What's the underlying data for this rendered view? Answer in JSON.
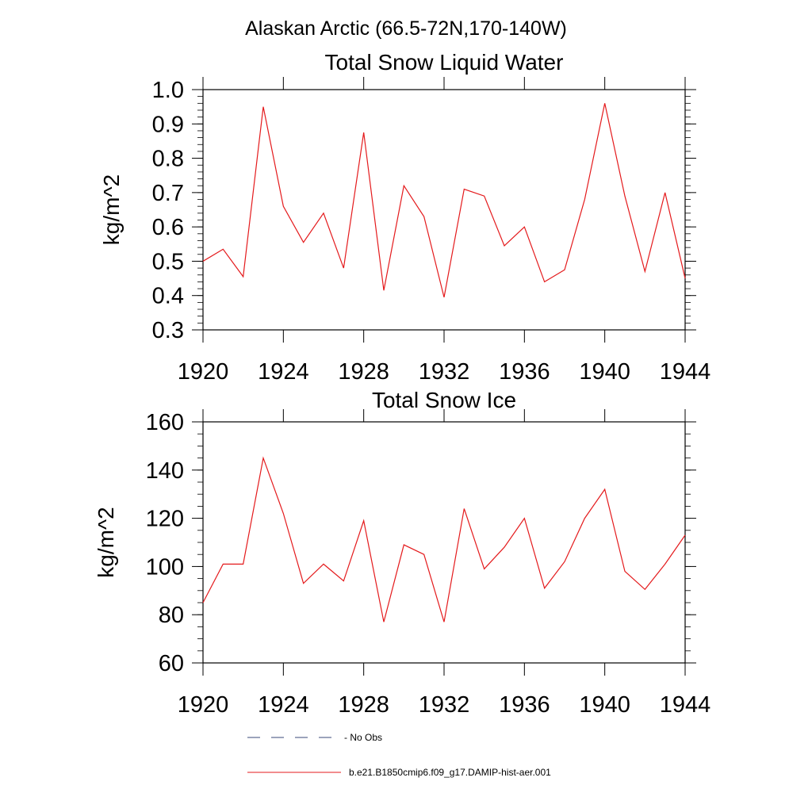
{
  "figure": {
    "title": "Alaskan Arctic (66.5-72N,170-140W)",
    "legend": [
      {
        "label": "- No Obs",
        "style": "dashed",
        "color": "#3a4a7a"
      },
      {
        "label": "b.e21.B1850cmip6.f09_g17.DAMIP-hist-aer.001",
        "style": "solid",
        "color": "#e41a1c"
      }
    ]
  },
  "chart_data": [
    {
      "type": "line",
      "title": "Total Snow Liquid Water",
      "xlabel": "",
      "ylabel": "kg/m^2",
      "xlim": [
        1920,
        1944
      ],
      "ylim": [
        0.3,
        1.0
      ],
      "xticks": [
        1920,
        1924,
        1928,
        1932,
        1936,
        1940,
        1944
      ],
      "xtick_labels": [
        "1920",
        "1924",
        "1928",
        "1932",
        "1936",
        "1940",
        "1944"
      ],
      "yticks": [
        0.3,
        0.4,
        0.5,
        0.6,
        0.7,
        0.8,
        0.9,
        1.0
      ],
      "ytick_labels": [
        "0.3",
        "0.4",
        "0.5",
        "0.6",
        "0.7",
        "0.8",
        "0.9",
        "1.0"
      ],
      "grid": false,
      "legend_position": "bottom",
      "x": [
        1920,
        1921,
        1922,
        1923,
        1924,
        1925,
        1926,
        1927,
        1928,
        1929,
        1930,
        1931,
        1932,
        1933,
        1934,
        1935,
        1936,
        1937,
        1938,
        1939,
        1940,
        1941,
        1942,
        1943,
        1944
      ],
      "series": [
        {
          "color": "#e41a1c",
          "values": [
            0.5,
            0.535,
            0.455,
            0.95,
            0.66,
            0.555,
            0.64,
            0.48,
            0.875,
            0.415,
            0.72,
            0.63,
            0.395,
            0.71,
            0.69,
            0.545,
            0.6,
            0.44,
            0.475,
            0.68,
            0.96,
            0.69,
            0.47,
            0.7,
            0.45
          ]
        }
      ]
    },
    {
      "type": "line",
      "title": "Total Snow Ice",
      "xlabel": "",
      "ylabel": "kg/m^2",
      "xlim": [
        1920,
        1944
      ],
      "ylim": [
        60,
        160
      ],
      "xticks": [
        1920,
        1924,
        1928,
        1932,
        1936,
        1940,
        1944
      ],
      "xtick_labels": [
        "1920",
        "1924",
        "1928",
        "1932",
        "1936",
        "1940",
        "1944"
      ],
      "yticks": [
        60,
        80,
        100,
        120,
        140,
        160
      ],
      "ytick_labels": [
        "60",
        "80",
        "100",
        "120",
        "140",
        "160"
      ],
      "grid": false,
      "legend_position": "bottom",
      "x": [
        1920,
        1921,
        1922,
        1923,
        1924,
        1925,
        1926,
        1927,
        1928,
        1929,
        1930,
        1931,
        1932,
        1933,
        1934,
        1935,
        1936,
        1937,
        1938,
        1939,
        1940,
        1941,
        1942,
        1943,
        1944
      ],
      "series": [
        {
          "color": "#e41a1c",
          "values": [
            85,
            101,
            101,
            145,
            122,
            93,
            101,
            94,
            119,
            77,
            109,
            105,
            77,
            124,
            99,
            108,
            120,
            91,
            102,
            120,
            132,
            98,
            90.5,
            101,
            113
          ]
        }
      ]
    }
  ]
}
